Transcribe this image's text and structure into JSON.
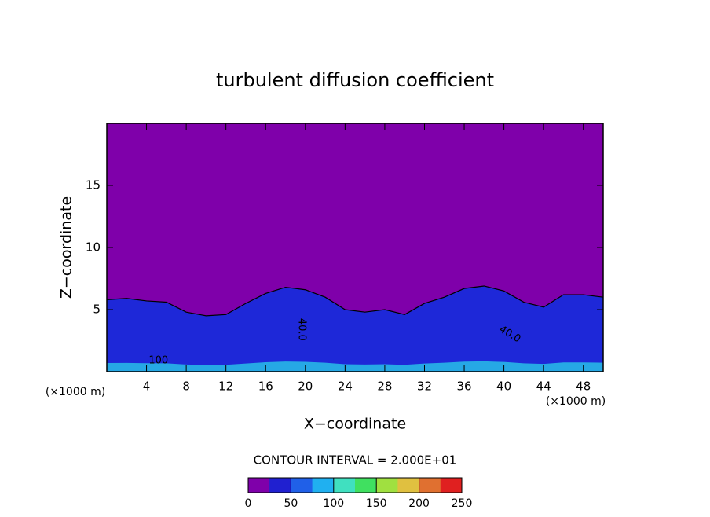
{
  "chart_data": {
    "type": "contour",
    "title": "turbulent diffusion coefficient",
    "x_label": "X−coordinate",
    "y_label": "Z−coordinate",
    "x_unit": "(×1000 m)",
    "y_unit": "(×1000 m)",
    "xlim": [
      0,
      50
    ],
    "ylim": [
      0,
      20
    ],
    "xticks": [
      4,
      8,
      12,
      16,
      20,
      24,
      28,
      32,
      36,
      40,
      44,
      48
    ],
    "yticks": [
      5,
      10,
      15
    ],
    "background_color": "#7f00aa",
    "layer_color": "#1e28d8",
    "ground_color": "#28c8e8",
    "layer_top": {
      "x": [
        0,
        2,
        4,
        6,
        8,
        10,
        12,
        14,
        16,
        18,
        20,
        22,
        24,
        26,
        28,
        30,
        32,
        34,
        36,
        38,
        40,
        42,
        44,
        46,
        48,
        50
      ],
      "values": [
        5.8,
        5.9,
        5.7,
        5.6,
        4.8,
        4.5,
        4.6,
        5.5,
        6.3,
        6.8,
        6.6,
        6.0,
        5.0,
        4.8,
        5.0,
        4.6,
        5.5,
        6.0,
        6.7,
        6.9,
        6.5,
        5.6,
        5.2,
        6.2,
        6.2,
        6.0
      ]
    },
    "annotations": [
      {
        "text": "40.0",
        "x": 19.6,
        "y": 3.4,
        "angle": 90
      },
      {
        "text": "40.0",
        "x": 40.6,
        "y": 3.0,
        "angle": 30
      },
      {
        "text": "100",
        "x": 5.2,
        "y": 0.9,
        "angle": 0
      }
    ],
    "contour_interval": "CONTOUR INTERVAL = 2.000E+01",
    "colorbar": {
      "lim": [
        0,
        250
      ],
      "ticks": [
        0,
        50,
        100,
        150,
        200,
        250
      ],
      "colors": [
        "#7f00aa",
        "#2020d0",
        "#2060e8",
        "#20b0f0",
        "#40e0c0",
        "#40e060",
        "#a0e040",
        "#e0c040",
        "#e07030",
        "#e02020"
      ]
    }
  }
}
